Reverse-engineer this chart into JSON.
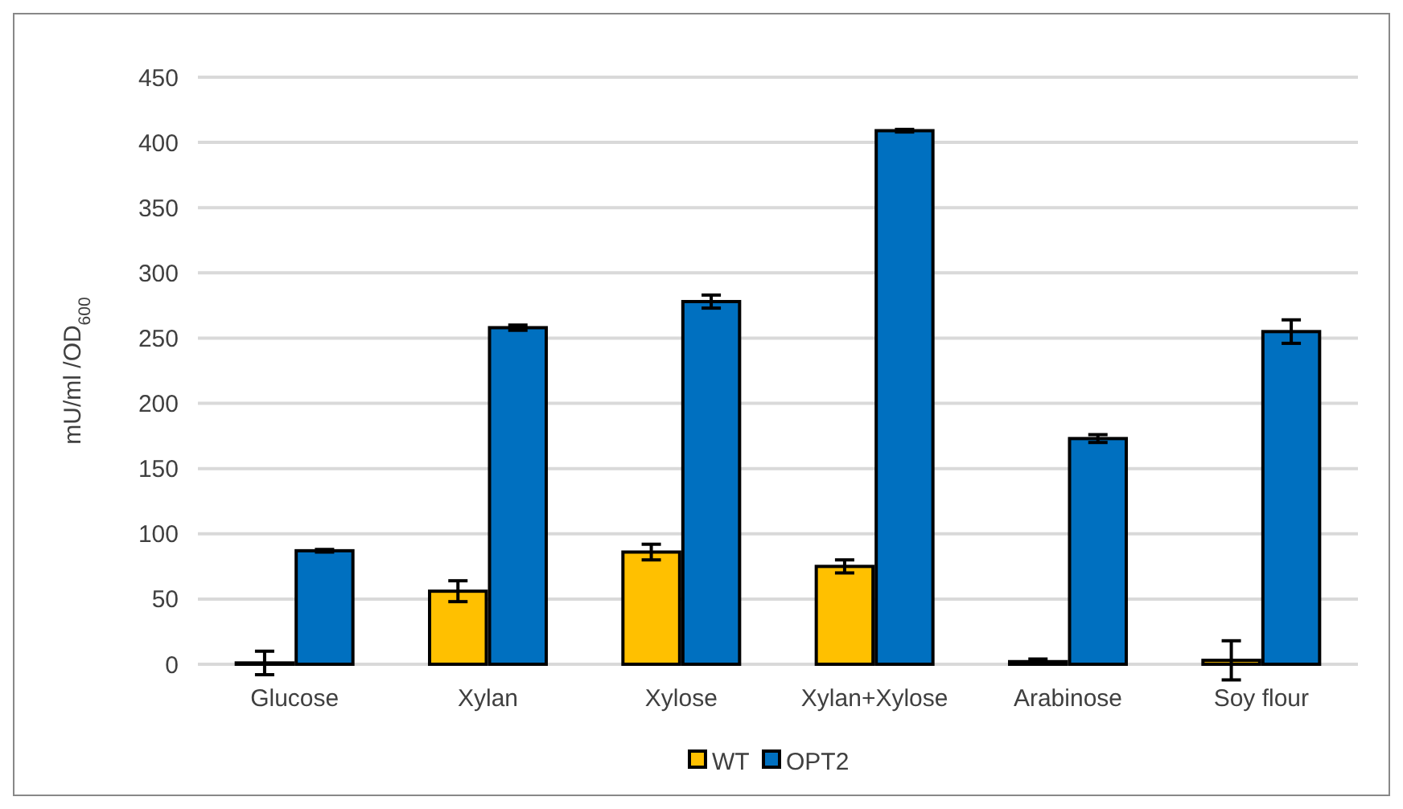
{
  "chart_data": {
    "type": "bar",
    "ylabel": "mU/ml /OD$_{600}$",
    "categories": [
      "Glucose",
      "Xylan",
      "Xylose",
      "Xylan+Xylose",
      "Arabinose",
      "Soy flour"
    ],
    "series": [
      {
        "name": "WT",
        "color": "#ffc000",
        "values": [
          1,
          56,
          86,
          75,
          2,
          3
        ],
        "errors": [
          9,
          8,
          6,
          5,
          2,
          15
        ]
      },
      {
        "name": "OPT2",
        "color": "#0070c0",
        "values": [
          87,
          258,
          278,
          409,
          173,
          255
        ],
        "errors": [
          1,
          2,
          5,
          1,
          3,
          9
        ]
      }
    ],
    "ylim": [
      0,
      450
    ],
    "yticks": [
      0,
      50,
      100,
      150,
      200,
      250,
      300,
      350,
      400,
      450
    ],
    "grid": "y",
    "legend": "bottom"
  }
}
